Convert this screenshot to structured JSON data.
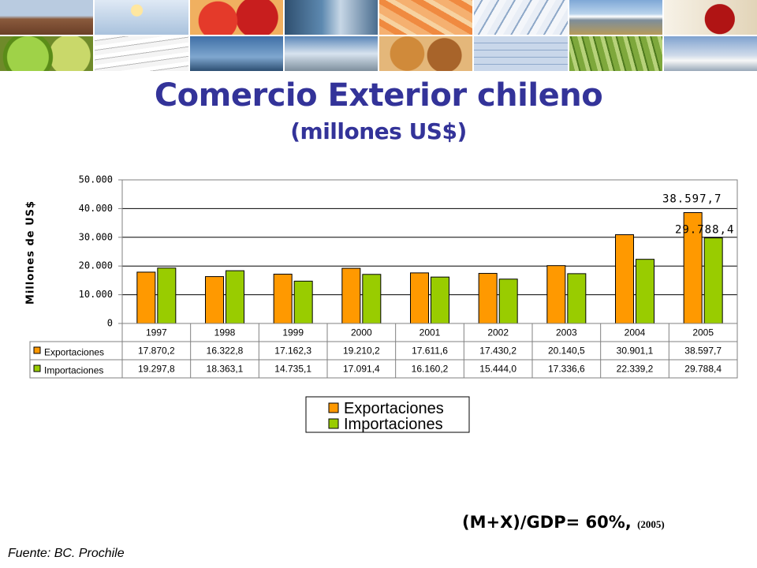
{
  "slide": {
    "title": "Comercio Exterior chileno",
    "subtitle": "(millones US$)",
    "ratio_text": "(M+X)/GDP= 60%,",
    "ratio_year": "(2005)",
    "source": "Fuente: BC. Prochile"
  },
  "colors": {
    "title": "#333399",
    "exports": "#FF9900",
    "imports": "#99CC00"
  },
  "chart_data": {
    "type": "bar",
    "ylabel": "Millones de US$",
    "ylim": [
      0,
      50000
    ],
    "yticks": [
      0,
      10000,
      20000,
      30000,
      40000,
      50000
    ],
    "ytick_labels": [
      "0",
      "10.000",
      "20.000",
      "30.000",
      "40.000",
      "50.000"
    ],
    "grid": true,
    "legend_position": "bottom",
    "categories": [
      "1997",
      "1998",
      "1999",
      "2000",
      "2001",
      "2002",
      "2003",
      "2004",
      "2005"
    ],
    "series": [
      {
        "name": "Exportaciones",
        "color": "#FF9900",
        "values": [
          17870.2,
          16322.8,
          17162.3,
          19210.2,
          17611.6,
          17430.2,
          20140.5,
          30901.1,
          38597.7
        ],
        "labels": [
          "17.870,2",
          "16.322,8",
          "17.162,3",
          "19.210,2",
          "17.611,6",
          "17.430,2",
          "20.140,5",
          "30.901,1",
          "38.597,7"
        ]
      },
      {
        "name": "Importaciones",
        "color": "#99CC00",
        "values": [
          19297.8,
          18363.1,
          14735.1,
          17091.4,
          16160.2,
          15444.0,
          17336.6,
          22339.2,
          29788.4
        ],
        "labels": [
          "19.297,8",
          "18.363,1",
          "14.735,1",
          "17.091,4",
          "16.160,2",
          "15.444,0",
          "17.336,6",
          "22.339,2",
          "29.788,4"
        ]
      }
    ],
    "annotations": [
      "38.597,7",
      "29.788,4"
    ]
  }
}
